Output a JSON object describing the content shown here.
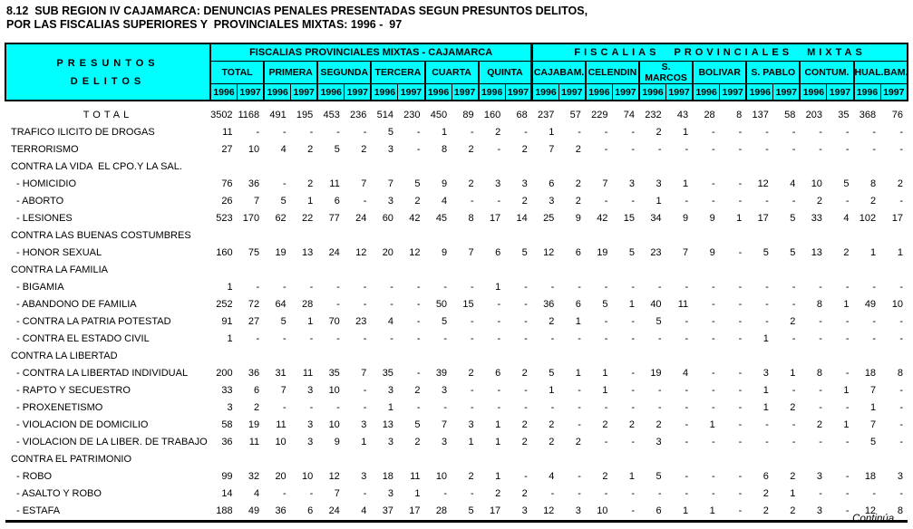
{
  "title": {
    "line1": "8.12  SUB REGION IV CAJAMARCA: DENUNCIAS PENALES PRESENTADAS SEGUN PRESUNTOS DELITOS,",
    "line2": "POR LAS FISCALIAS SUPERIORES Y  PROVINCIALES MIXTAS: 1996 -  97"
  },
  "colors": {
    "header_bg": "#00ffff",
    "border": "#000000",
    "text": "#000000",
    "page_bg": "#ffffff"
  },
  "table": {
    "row_header": {
      "line1": "PRESUNTOS",
      "line2": "DELITOS"
    },
    "supergroups": [
      {
        "label": "FISCALIAS PROVINCIALES MIXTAS - CAJAMARCA",
        "cols": 12,
        "letter_spaced": false
      },
      {
        "label": "FISCALIAS PROVINCIALES MIXTAS",
        "cols": 14,
        "letter_spaced": true
      }
    ],
    "groups": [
      "TOTAL",
      "PRIMERA",
      "SEGUNDA",
      "TERCERA",
      "CUARTA",
      "QUINTA",
      "CAJABAM.",
      "CELENDIN",
      "S. MARCOS",
      "BOLIVAR",
      "S. PABLO",
      "CONTUM.",
      "HUAL.BAM."
    ],
    "years": [
      "1996",
      "1997"
    ],
    "rows": [
      {
        "label": "TOTAL",
        "style": "total",
        "values": [
          "3502",
          "1168",
          "491",
          "195",
          "453",
          "236",
          "514",
          "230",
          "450",
          "89",
          "160",
          "68",
          "237",
          "57",
          "229",
          "74",
          "232",
          "43",
          "28",
          "8",
          "137",
          "58",
          "203",
          "35",
          "368",
          "76"
        ]
      },
      {
        "label": "TRAFICO ILICITO DE DROGAS",
        "style": "plain",
        "values": [
          "11",
          "-",
          "-",
          "-",
          "-",
          "-",
          "5",
          "-",
          "1",
          "-",
          "2",
          "-",
          "1",
          "-",
          "-",
          "-",
          "2",
          "1",
          "-",
          "-",
          "-",
          "-",
          "-",
          "-",
          "-",
          "-"
        ]
      },
      {
        "label": "TERRORISMO",
        "style": "plain",
        "values": [
          "27",
          "10",
          "4",
          "2",
          "5",
          "2",
          "3",
          "-",
          "8",
          "2",
          "-",
          "2",
          "7",
          "2",
          "-",
          "-",
          "-",
          "-",
          "-",
          "-",
          "-",
          "-",
          "-",
          "-",
          "-",
          "-"
        ]
      },
      {
        "label": "CONTRA LA VIDA  EL CPO.Y LA SAL.",
        "style": "section",
        "values": []
      },
      {
        "label": "- HOMICIDIO",
        "style": "item",
        "values": [
          "76",
          "36",
          "-",
          "2",
          "11",
          "7",
          "7",
          "5",
          "9",
          "2",
          "3",
          "3",
          "6",
          "2",
          "7",
          "3",
          "3",
          "1",
          "-",
          "-",
          "12",
          "4",
          "10",
          "5",
          "8",
          "2"
        ]
      },
      {
        "label": "- ABORTO",
        "style": "item",
        "values": [
          "26",
          "7",
          "5",
          "1",
          "6",
          "-",
          "3",
          "2",
          "4",
          "-",
          "-",
          "2",
          "3",
          "2",
          "-",
          "-",
          "1",
          "-",
          "-",
          "-",
          "-",
          "-",
          "2",
          "-",
          "2",
          "-"
        ]
      },
      {
        "label": "- LESIONES",
        "style": "item",
        "values": [
          "523",
          "170",
          "62",
          "22",
          "77",
          "24",
          "60",
          "42",
          "45",
          "8",
          "17",
          "14",
          "25",
          "9",
          "42",
          "15",
          "34",
          "9",
          "9",
          "1",
          "17",
          "5",
          "33",
          "4",
          "102",
          "17"
        ]
      },
      {
        "label": "CONTRA LAS BUENAS COSTUMBRES",
        "style": "section",
        "values": []
      },
      {
        "label": "- HONOR SEXUAL",
        "style": "item",
        "values": [
          "160",
          "75",
          "19",
          "13",
          "24",
          "12",
          "20",
          "12",
          "9",
          "7",
          "6",
          "5",
          "12",
          "6",
          "19",
          "5",
          "23",
          "7",
          "9",
          "-",
          "5",
          "5",
          "13",
          "2",
          "1",
          "1"
        ]
      },
      {
        "label": "CONTRA LA FAMILIA",
        "style": "section",
        "values": []
      },
      {
        "label": "- BIGAMIA",
        "style": "item",
        "values": [
          "1",
          "-",
          "-",
          "-",
          "-",
          "-",
          "-",
          "-",
          "-",
          "-",
          "1",
          "-",
          "-",
          "-",
          "-",
          "-",
          "-",
          "-",
          "-",
          "-",
          "-",
          "-",
          "-",
          "-",
          "-",
          "-"
        ]
      },
      {
        "label": "- ABANDONO DE FAMILIA",
        "style": "item",
        "values": [
          "252",
          "72",
          "64",
          "28",
          "-",
          "-",
          "-",
          "-",
          "50",
          "15",
          "-",
          "-",
          "36",
          "6",
          "5",
          "1",
          "40",
          "11",
          "-",
          "-",
          "-",
          "-",
          "8",
          "1",
          "49",
          "10"
        ]
      },
      {
        "label": "- CONTRA LA PATRIA POTESTAD",
        "style": "item",
        "values": [
          "91",
          "27",
          "5",
          "1",
          "70",
          "23",
          "4",
          "-",
          "5",
          "-",
          "-",
          "-",
          "2",
          "1",
          "-",
          "-",
          "5",
          "-",
          "-",
          "-",
          "-",
          "2",
          "-",
          "-",
          "-",
          "-"
        ]
      },
      {
        "label": "- CONTRA EL ESTADO CIVIL",
        "style": "item",
        "values": [
          "1",
          "-",
          "-",
          "-",
          "-",
          "-",
          "-",
          "-",
          "-",
          "-",
          "-",
          "-",
          "-",
          "-",
          "-",
          "-",
          "-",
          "-",
          "-",
          "-",
          "1",
          "-",
          "-",
          "-",
          "-",
          "-"
        ]
      },
      {
        "label": "CONTRA LA LIBERTAD",
        "style": "section",
        "values": []
      },
      {
        "label": "- CONTRA LA LIBERTAD INDIVIDUAL",
        "style": "item",
        "values": [
          "200",
          "36",
          "31",
          "11",
          "35",
          "7",
          "35",
          "-",
          "39",
          "2",
          "6",
          "2",
          "5",
          "1",
          "1",
          "-",
          "19",
          "4",
          "-",
          "-",
          "3",
          "1",
          "8",
          "-",
          "18",
          "8"
        ]
      },
      {
        "label": "- RAPTO Y SECUESTRO",
        "style": "item",
        "values": [
          "33",
          "6",
          "7",
          "3",
          "10",
          "-",
          "3",
          "2",
          "3",
          "-",
          "-",
          "-",
          "1",
          "-",
          "1",
          "-",
          "-",
          "-",
          "-",
          "-",
          "1",
          "-",
          "-",
          "1",
          "7",
          "-"
        ]
      },
      {
        "label": "- PROXENETISMO",
        "style": "item",
        "values": [
          "3",
          "2",
          "-",
          "-",
          "-",
          "-",
          "1",
          "-",
          "-",
          "-",
          "-",
          "-",
          "-",
          "-",
          "-",
          "-",
          "-",
          "-",
          "-",
          "-",
          "1",
          "2",
          "-",
          "-",
          "1",
          "-"
        ]
      },
      {
        "label": "- VIOLACION DE DOMICILIO",
        "style": "item",
        "values": [
          "58",
          "19",
          "11",
          "3",
          "10",
          "3",
          "13",
          "5",
          "7",
          "3",
          "1",
          "2",
          "2",
          "-",
          "2",
          "2",
          "2",
          "-",
          "1",
          "-",
          "-",
          "-",
          "2",
          "1",
          "7",
          "-"
        ]
      },
      {
        "label": "- VIOLACION DE LA LIBER. DE TRABAJO",
        "style": "item",
        "values": [
          "36",
          "11",
          "10",
          "3",
          "9",
          "1",
          "3",
          "2",
          "3",
          "1",
          "1",
          "2",
          "2",
          "2",
          "-",
          "-",
          "3",
          "-",
          "-",
          "-",
          "-",
          "-",
          "-",
          "-",
          "5",
          "-"
        ]
      },
      {
        "label": "CONTRA EL PATRIMONIO",
        "style": "section",
        "values": []
      },
      {
        "label": "- ROBO",
        "style": "item",
        "values": [
          "99",
          "32",
          "20",
          "10",
          "12",
          "3",
          "18",
          "11",
          "10",
          "2",
          "1",
          "-",
          "4",
          "-",
          "2",
          "1",
          "5",
          "-",
          "-",
          "-",
          "6",
          "2",
          "3",
          "-",
          "18",
          "3"
        ]
      },
      {
        "label": "- ASALTO Y ROBO",
        "style": "item",
        "values": [
          "14",
          "4",
          "-",
          "-",
          "7",
          "-",
          "3",
          "1",
          "-",
          "-",
          "2",
          "2",
          "-",
          "-",
          "-",
          "-",
          "-",
          "-",
          "-",
          "-",
          "2",
          "1",
          "-",
          "-",
          "-",
          "-"
        ]
      },
      {
        "label": "- ESTAFA",
        "style": "item",
        "values": [
          "188",
          "49",
          "36",
          "6",
          "24",
          "4",
          "37",
          "17",
          "28",
          "5",
          "17",
          "3",
          "12",
          "3",
          "10",
          "-",
          "6",
          "1",
          "1",
          "-",
          "2",
          "2",
          "3",
          "-",
          "12",
          "8"
        ]
      }
    ]
  },
  "footer": {
    "continues": "Continúa ..."
  }
}
